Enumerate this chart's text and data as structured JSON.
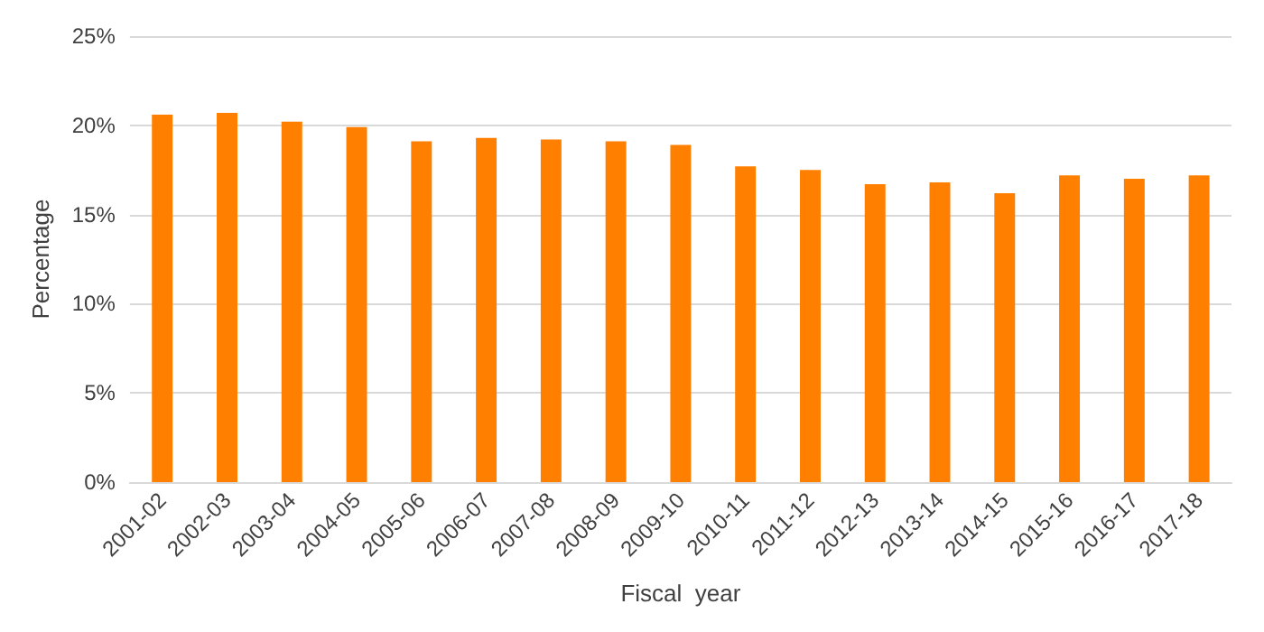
{
  "chart_data": {
    "type": "bar",
    "xlabel": "Fiscal  year",
    "ylabel": "Percentage",
    "categories": [
      "2001-02",
      "2002-03",
      "2003-04",
      "2004-05",
      "2005-06",
      "2006-07",
      "2007-08",
      "2008-09",
      "2009-10",
      "2010-11",
      "2011-12",
      "2012-13",
      "2013-14",
      "2014-15",
      "2015-16",
      "2016-17",
      "2017-18"
    ],
    "values": [
      20.6,
      20.7,
      20.2,
      19.9,
      19.1,
      19.3,
      19.2,
      19.1,
      18.9,
      17.7,
      17.5,
      16.7,
      16.8,
      16.2,
      17.2,
      17.0,
      17.2
    ],
    "color": "#ff7f00",
    "ylim": [
      0,
      25
    ],
    "yticks": [
      {
        "value": 0,
        "label": "0%"
      },
      {
        "value": 5,
        "label": "5%"
      },
      {
        "value": 10,
        "label": "10%"
      },
      {
        "value": 15,
        "label": "15%"
      },
      {
        "value": 20,
        "label": "20%"
      },
      {
        "value": 25,
        "label": "25%"
      }
    ],
    "grid": "y"
  }
}
